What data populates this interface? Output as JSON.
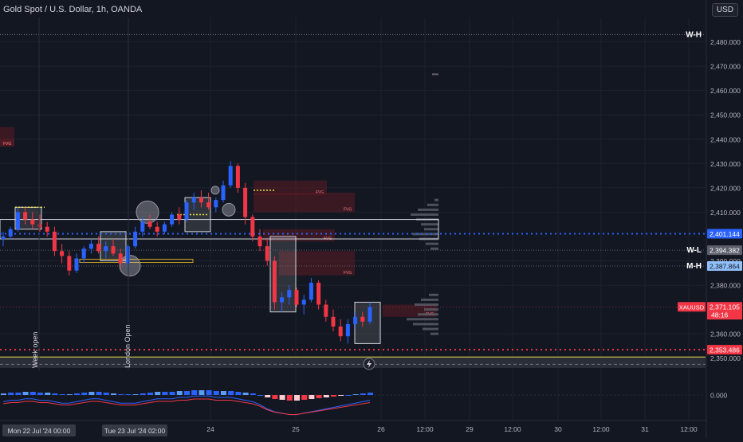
{
  "header": {
    "title": "Gold Spot / U.S. Dollar, 1h, OANDA",
    "currency_badge": "USD"
  },
  "colors": {
    "background": "#131722",
    "grid": "#1e222d",
    "up": "#2962ff",
    "down": "#f23645",
    "text": "#d1d4dc",
    "dotted_blue": "#2962ff",
    "dotted_red": "#f23645",
    "fvg": "#5c1c24",
    "yellow_line": "#f0e442"
  },
  "labels": {
    "week_high": "W-H",
    "week_low": "W-L",
    "month_high": "M-H",
    "ticker": "XAUUSD",
    "countdown": "48:16",
    "fvg": "FVG",
    "week_open": "Week open",
    "london_open": "London Open",
    "indicator_zero": "0.000"
  },
  "chart_data": {
    "type": "candlestick",
    "title": "Gold Spot / U.S. Dollar, 1h, OANDA",
    "ylim": [
      2345,
      2490
    ],
    "y_ticks": [
      "2,480.000",
      "2,470.000",
      "2,460.000",
      "2,450.000",
      "2,440.000",
      "2,430.000",
      "2,420.000",
      "2,410.000",
      "2,390.000",
      "2,380.000",
      "2,360.000",
      "2,350.000"
    ],
    "x_ticks": [
      "24",
      "25",
      "26",
      "12:00",
      "29",
      "12:00",
      "30",
      "12:00",
      "31",
      "12:00"
    ],
    "x_tick_dates": [
      "Mon 22 Jul '24  00:00",
      "Tue 23 Jul '24  02:00"
    ],
    "price_labels": [
      {
        "value": "2,401.144",
        "kind": "blue"
      },
      {
        "value": "2,394.382",
        "kind": "gray"
      },
      {
        "value": "2,387.864",
        "kind": "light-blue"
      },
      {
        "value": "2,371.105",
        "kind": "current"
      },
      {
        "value": "2,353.486",
        "kind": "red"
      }
    ],
    "levels": {
      "week_high": 2483,
      "dotted_blue": 2401.144,
      "week_low": 2394.382,
      "month_high": 2387.864,
      "dotted_red": 2353.486,
      "yellow_line": 2350.5
    },
    "candles": [
      {
        "o": 2399,
        "h": 2402,
        "l": 2396,
        "c": 2400
      },
      {
        "o": 2400,
        "h": 2404,
        "l": 2399,
        "c": 2403
      },
      {
        "o": 2403,
        "h": 2412,
        "l": 2402,
        "c": 2410
      },
      {
        "o": 2410,
        "h": 2412,
        "l": 2405,
        "c": 2407
      },
      {
        "o": 2407,
        "h": 2410,
        "l": 2403,
        "c": 2405
      },
      {
        "o": 2405,
        "h": 2409,
        "l": 2402,
        "c": 2404
      },
      {
        "o": 2404,
        "h": 2406,
        "l": 2400,
        "c": 2402
      },
      {
        "o": 2402,
        "h": 2404,
        "l": 2392,
        "c": 2394
      },
      {
        "o": 2394,
        "h": 2397,
        "l": 2389,
        "c": 2392
      },
      {
        "o": 2392,
        "h": 2394,
        "l": 2384,
        "c": 2386
      },
      {
        "o": 2386,
        "h": 2393,
        "l": 2385,
        "c": 2391
      },
      {
        "o": 2391,
        "h": 2396,
        "l": 2389,
        "c": 2395
      },
      {
        "o": 2395,
        "h": 2399,
        "l": 2393,
        "c": 2397
      },
      {
        "o": 2397,
        "h": 2400,
        "l": 2393,
        "c": 2394
      },
      {
        "o": 2394,
        "h": 2398,
        "l": 2391,
        "c": 2396
      },
      {
        "o": 2396,
        "h": 2399,
        "l": 2392,
        "c": 2393
      },
      {
        "o": 2393,
        "h": 2395,
        "l": 2387,
        "c": 2389
      },
      {
        "o": 2389,
        "h": 2397,
        "l": 2387,
        "c": 2396
      },
      {
        "o": 2396,
        "h": 2404,
        "l": 2395,
        "c": 2402
      },
      {
        "o": 2402,
        "h": 2408,
        "l": 2400,
        "c": 2406
      },
      {
        "o": 2406,
        "h": 2409,
        "l": 2403,
        "c": 2404
      },
      {
        "o": 2404,
        "h": 2406,
        "l": 2400,
        "c": 2402
      },
      {
        "o": 2402,
        "h": 2406,
        "l": 2401,
        "c": 2405
      },
      {
        "o": 2405,
        "h": 2410,
        "l": 2404,
        "c": 2409
      },
      {
        "o": 2409,
        "h": 2412,
        "l": 2405,
        "c": 2407
      },
      {
        "o": 2407,
        "h": 2415,
        "l": 2406,
        "c": 2414
      },
      {
        "o": 2414,
        "h": 2418,
        "l": 2411,
        "c": 2416
      },
      {
        "o": 2416,
        "h": 2419,
        "l": 2412,
        "c": 2414
      },
      {
        "o": 2414,
        "h": 2418,
        "l": 2411,
        "c": 2412
      },
      {
        "o": 2412,
        "h": 2416,
        "l": 2410,
        "c": 2415
      },
      {
        "o": 2415,
        "h": 2423,
        "l": 2414,
        "c": 2421
      },
      {
        "o": 2421,
        "h": 2431,
        "l": 2420,
        "c": 2429
      },
      {
        "o": 2429,
        "h": 2430,
        "l": 2418,
        "c": 2420
      },
      {
        "o": 2420,
        "h": 2422,
        "l": 2405,
        "c": 2408
      },
      {
        "o": 2408,
        "h": 2409,
        "l": 2398,
        "c": 2400
      },
      {
        "o": 2400,
        "h": 2403,
        "l": 2394,
        "c": 2396
      },
      {
        "o": 2396,
        "h": 2399,
        "l": 2388,
        "c": 2390
      },
      {
        "o": 2390,
        "h": 2392,
        "l": 2370,
        "c": 2373
      },
      {
        "o": 2373,
        "h": 2377,
        "l": 2369,
        "c": 2375
      },
      {
        "o": 2375,
        "h": 2380,
        "l": 2372,
        "c": 2378
      },
      {
        "o": 2378,
        "h": 2379,
        "l": 2371,
        "c": 2372
      },
      {
        "o": 2372,
        "h": 2376,
        "l": 2368,
        "c": 2374
      },
      {
        "o": 2374,
        "h": 2383,
        "l": 2373,
        "c": 2381
      },
      {
        "o": 2381,
        "h": 2382,
        "l": 2370,
        "c": 2372
      },
      {
        "o": 2372,
        "h": 2374,
        "l": 2365,
        "c": 2367
      },
      {
        "o": 2367,
        "h": 2370,
        "l": 2361,
        "c": 2363
      },
      {
        "o": 2363,
        "h": 2366,
        "l": 2357,
        "c": 2359
      },
      {
        "o": 2359,
        "h": 2366,
        "l": 2356,
        "c": 2364
      },
      {
        "o": 2364,
        "h": 2369,
        "l": 2362,
        "c": 2367
      },
      {
        "o": 2367,
        "h": 2369,
        "l": 2363,
        "c": 2365
      },
      {
        "o": 2365,
        "h": 2373,
        "l": 2364,
        "c": 2371
      }
    ]
  }
}
